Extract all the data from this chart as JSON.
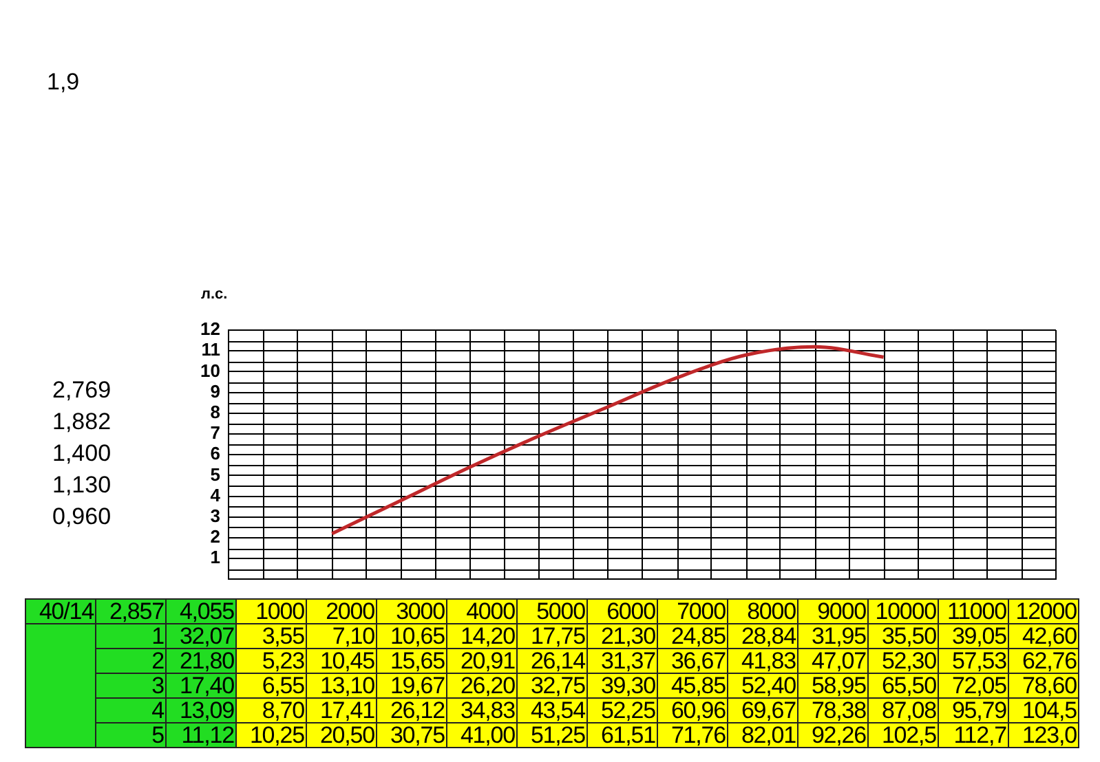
{
  "chart_data": [
    {
      "type": "line",
      "ylabel": "л.с.",
      "categories": [
        null,
        null,
        null,
        null,
        null,
        null,
        null,
        null,
        null,
        null,
        null,
        null
      ],
      "series": [
        {
          "color": "#c0282a",
          "values": [
            null,
            2.2,
            3.8,
            5.4,
            6.9,
            8.3,
            9.7,
            10.8,
            11.2,
            10.7,
            null,
            null
          ]
        }
      ],
      "ylim": [
        0,
        12
      ],
      "yticks": [
        1,
        2,
        3,
        4,
        5,
        6,
        7,
        8,
        9,
        10,
        11,
        12
      ],
      "grid": true,
      "legend": false,
      "marker": "none",
      "line_style": "solid",
      "tick_labels": "y",
      "annotations": [
        "1,9",
        "2,769",
        "1,882",
        "1,400",
        "1,130",
        "0,960"
      ]
    },
    {
      "type": "heatmap",
      "annotations": [
        "40/14",
        "2,857"
      ],
      "categories": [
        "4,055",
        "1000",
        "2000",
        "3000",
        "4000",
        "5000",
        "6000",
        "7000",
        "8000",
        "9000",
        "10000",
        "11000",
        "12000"
      ],
      "y_categories": [
        "1",
        "2",
        "3",
        "4",
        "5"
      ],
      "cells": [
        [
          32.07,
          3.55,
          7.1,
          10.65,
          14.2,
          17.75,
          21.3,
          24.85,
          28.84,
          31.95,
          35.5,
          39.05,
          42.6
        ],
        [
          21.8,
          5.23,
          10.45,
          15.65,
          20.91,
          26.14,
          31.37,
          36.67,
          41.83,
          47.07,
          52.3,
          57.53,
          62.76
        ],
        [
          17.4,
          6.55,
          13.1,
          19.67,
          26.2,
          32.75,
          39.3,
          45.85,
          52.4,
          58.95,
          65.5,
          72.05,
          78.6
        ],
        [
          13.09,
          8.7,
          17.41,
          26.12,
          34.83,
          43.54,
          52.25,
          60.96,
          69.67,
          78.38,
          87.08,
          95.79,
          104.5
        ],
        [
          11.12,
          10.25,
          20.5,
          30.75,
          41.0,
          51.25,
          61.51,
          71.76,
          82.01,
          92.26,
          102.5,
          112.7,
          123.0
        ]
      ],
      "cell_labels": [
        [
          "32,07",
          "3,55",
          "7,10",
          "10,65",
          "14,20",
          "17,75",
          "21,30",
          "24,85",
          "28,84",
          "31,95",
          "35,50",
          "39,05",
          "42,60"
        ],
        [
          "21,80",
          "5,23",
          "10,45",
          "15,65",
          "20,91",
          "26,14",
          "31,37",
          "36,67",
          "41,83",
          "47,07",
          "52,30",
          "57,53",
          "62,76"
        ],
        [
          "17,40",
          "6,55",
          "13,10",
          "19,67",
          "26,20",
          "32,75",
          "39,30",
          "45,85",
          "52,40",
          "58,95",
          "65,50",
          "72,05",
          "78,60"
        ],
        [
          "13,09",
          "8,70",
          "17,41",
          "26,12",
          "34,83",
          "43,54",
          "52,25",
          "60,96",
          "69,67",
          "78,38",
          "87,08",
          "95,79",
          "104,5"
        ],
        [
          "11,12",
          "10,25",
          "20,50",
          "30,75",
          "41,00",
          "51,25",
          "61,51",
          "71,76",
          "82,01",
          "92,26",
          "102,5",
          "112,7",
          "123,0"
        ]
      ]
    }
  ]
}
